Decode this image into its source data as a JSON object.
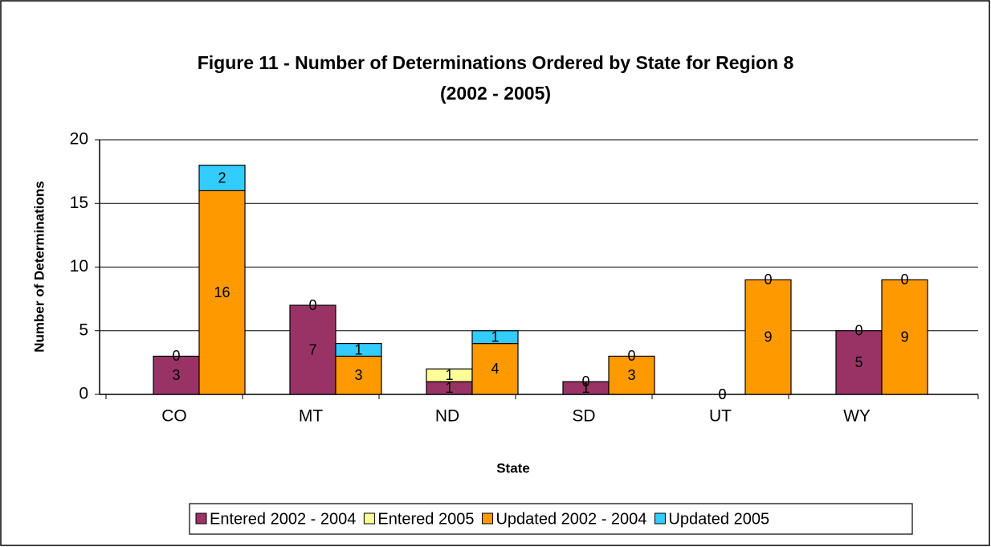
{
  "chart_data": {
    "type": "stacked-grouped-bar",
    "title": [
      "Figure 11 - Number of Determinations Ordered by State for Region 8",
      "(2002 - 2005)"
    ],
    "x_label": "State",
    "y_label": "Number of Determinations",
    "categories": [
      "CO",
      "MT",
      "ND",
      "SD",
      "UT",
      "WY"
    ],
    "series": [
      {
        "name": "Entered 2002 - 2004",
        "color": "#993366",
        "values": [
          3,
          7,
          1,
          1,
          0,
          5
        ]
      },
      {
        "name": "Entered 2005",
        "color": "#ffff99",
        "values": [
          0,
          0,
          1,
          0,
          0,
          0
        ]
      },
      {
        "name": "Updated 2002 - 2004",
        "color": "#ff9900",
        "values": [
          16,
          3,
          4,
          3,
          9,
          9
        ]
      },
      {
        "name": "Updated 2005",
        "color": "#33ccff",
        "values": [
          2,
          1,
          1,
          0,
          0,
          0
        ]
      }
    ],
    "ylim": [
      0,
      20
    ],
    "yticks": [
      0,
      5,
      10,
      15,
      20
    ],
    "grid": true,
    "legend": "bottom"
  }
}
